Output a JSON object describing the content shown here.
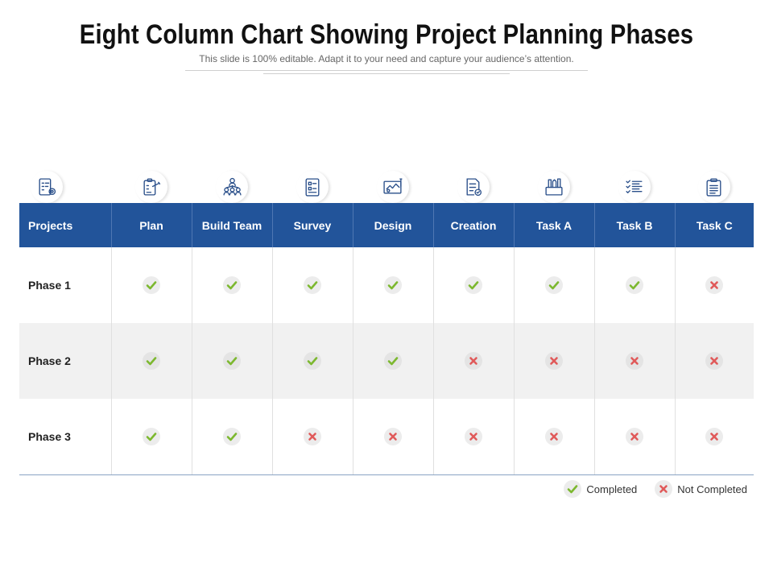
{
  "title": "Eight Column Chart Showing Project Planning Phases",
  "subtitle": "This slide is 100% editable. Adapt it to your need and capture your audience’s attention.",
  "icons": [
    "checklist-gear-icon",
    "clipboard-pencil-icon",
    "team-network-icon",
    "survey-document-icon",
    "design-board-icon",
    "document-check-icon",
    "tools-box-icon",
    "task-list-icon",
    "clipboard-list-icon"
  ],
  "table": {
    "headers": [
      "Projects",
      "Plan",
      "Build Team",
      "Survey",
      "Design",
      "Creation",
      "Task A",
      "Task B",
      "Task C"
    ],
    "rows": [
      {
        "label": "Phase 1",
        "status": [
          true,
          true,
          true,
          true,
          true,
          true,
          true,
          false
        ]
      },
      {
        "label": "Phase 2",
        "status": [
          true,
          true,
          true,
          true,
          false,
          false,
          false,
          false
        ]
      },
      {
        "label": "Phase 3",
        "status": [
          true,
          true,
          false,
          false,
          false,
          false,
          false,
          false
        ]
      }
    ]
  },
  "legend": {
    "completed": "Completed",
    "not_completed": "Not Completed"
  },
  "colors": {
    "header_bg": "#22549a",
    "check": "#7cb82f",
    "cross": "#e05a5a"
  }
}
